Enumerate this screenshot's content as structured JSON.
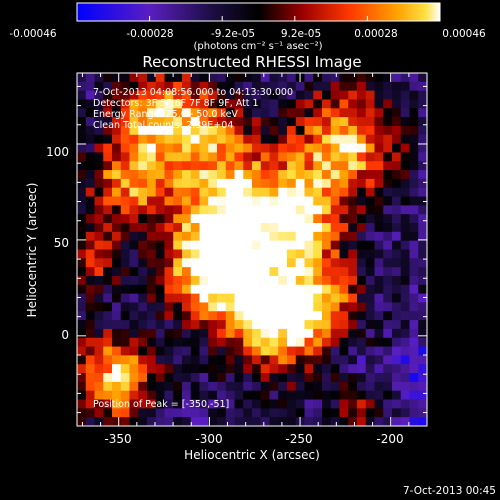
{
  "colorbar": {
    "ticks": [
      "-0.00046",
      "-0.00028",
      "-9.2e-05",
      "9.2e-05",
      "0.00028",
      "0.00046"
    ],
    "unit_label": "(photons cm⁻² s⁻¹ asec⁻²)"
  },
  "footer": {
    "date": "7-Oct-2013 00:45"
  },
  "chart_data": {
    "type": "heatmap",
    "title": "Reconstructed RHESSI Image",
    "xlabel": "Heliocentric X (arcsec)",
    "ylabel": "Heliocentric Y (arcsec)",
    "xlim": [
      -373,
      -180
    ],
    "ylim": [
      -47,
      137
    ],
    "x_ticks": [
      "-350",
      "-300",
      "-250",
      "-200"
    ],
    "y_ticks": [
      "0",
      "50",
      "100"
    ],
    "value_range": [
      -0.00046,
      0.00046
    ],
    "colormap": [
      "#0000ff",
      "#6a22b0",
      "#1a0d3e",
      "#000000",
      "#c00000",
      "#ff4000",
      "#ffa000",
      "#ffe040",
      "#ffffff"
    ],
    "annotations": {
      "time": "7-Oct-2013 04:08:56.000 to 04:13:30.000",
      "detectors": "Detectors: 3F 5F 6F 7F 8F 9F, Att 1",
      "energy": "Energy Range: 25.0 - 50.0 keV",
      "clean": "Clean     Total counts: 2.39E+04",
      "peak": "Position of Peak = [-350,-51]"
    }
  }
}
